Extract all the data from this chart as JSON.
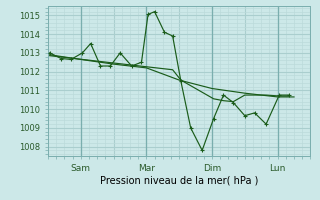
{
  "xlabel": "Pression niveau de la mer( hPa )",
  "bg_color": "#cce8e8",
  "grid_major_color": "#aacece",
  "grid_minor_color": "#bbdada",
  "line_color": "#1a5c1a",
  "ylim": [
    1007.5,
    1015.5
  ],
  "xlim": [
    0,
    8.0
  ],
  "yticks": [
    1008,
    1009,
    1010,
    1011,
    1012,
    1013,
    1014,
    1015
  ],
  "xtick_labels": [
    "",
    "Sam",
    "",
    "Mar",
    "",
    "Dim",
    "",
    "Lun",
    ""
  ],
  "xtick_positions": [
    0,
    1,
    2,
    3,
    4,
    5,
    6,
    7,
    8
  ],
  "vline_positions": [
    1.0,
    3.0,
    5.0,
    7.0
  ],
  "series1_x": [
    0.05,
    0.4,
    0.7,
    1.05,
    1.3,
    1.6,
    1.9,
    2.2,
    2.55,
    2.85,
    3.05,
    3.25,
    3.55,
    3.8,
    4.05,
    4.35,
    4.7,
    5.05,
    5.35,
    5.65,
    6.0,
    6.3,
    6.65,
    7.05,
    7.35
  ],
  "series1_y": [
    1013.0,
    1012.7,
    1012.65,
    1013.0,
    1013.5,
    1012.3,
    1012.3,
    1013.0,
    1012.3,
    1012.5,
    1015.05,
    1015.2,
    1014.1,
    1013.9,
    1011.5,
    1009.0,
    1007.8,
    1009.5,
    1010.75,
    1010.35,
    1009.65,
    1009.8,
    1009.2,
    1010.75,
    1010.75
  ],
  "series2_x": [
    0.05,
    1.0,
    2.0,
    3.0,
    4.0,
    5.0,
    6.0,
    7.0,
    7.5
  ],
  "series2_y": [
    1012.9,
    1012.65,
    1012.4,
    1012.2,
    1011.55,
    1011.1,
    1010.85,
    1010.65,
    1010.65
  ],
  "series3_x": [
    0.05,
    2.55,
    3.8,
    4.05,
    5.05,
    5.35,
    5.65,
    6.0,
    6.3,
    6.65,
    7.05,
    7.35
  ],
  "series3_y": [
    1012.85,
    1012.35,
    1012.1,
    1011.55,
    1010.55,
    1010.45,
    1010.4,
    1010.75,
    1010.75,
    1010.75,
    1010.7,
    1010.7
  ]
}
